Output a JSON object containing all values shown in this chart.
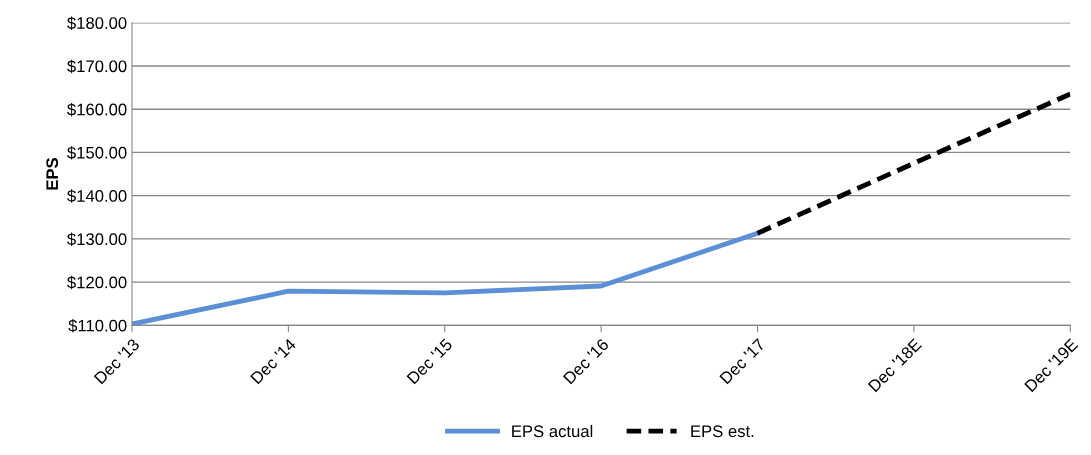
{
  "chart_data": {
    "type": "line",
    "ylabel": "EPS",
    "categories": [
      "Dec '13",
      "Dec '14",
      "Dec '15",
      "Dec '16",
      "Dec '17",
      "Dec '18E",
      "Dec '19E"
    ],
    "series": [
      {
        "name": "EPS actual",
        "color": "#5b8fd6",
        "line_style": "solid",
        "values": [
          110.3,
          117.9,
          117.5,
          119.1,
          131.3,
          null,
          null
        ]
      },
      {
        "name": "EPS est.",
        "color": "#000000",
        "line_style": "dashed",
        "values": [
          null,
          null,
          null,
          null,
          131.3,
          147.5,
          163.5
        ]
      }
    ],
    "ylim": [
      110,
      180
    ],
    "yticks": [
      {
        "value": 110,
        "label": "$110.00"
      },
      {
        "value": 120,
        "label": "$120.00"
      },
      {
        "value": 130,
        "label": "$130.00"
      },
      {
        "value": 140,
        "label": "$140.00"
      },
      {
        "value": 150,
        "label": "$150.00"
      },
      {
        "value": 160,
        "label": "$160.00"
      },
      {
        "value": 170,
        "label": "$170.00"
      },
      {
        "value": 180,
        "label": "$180.00"
      }
    ],
    "grid": "y",
    "legend": "bottom",
    "marker": "none"
  }
}
